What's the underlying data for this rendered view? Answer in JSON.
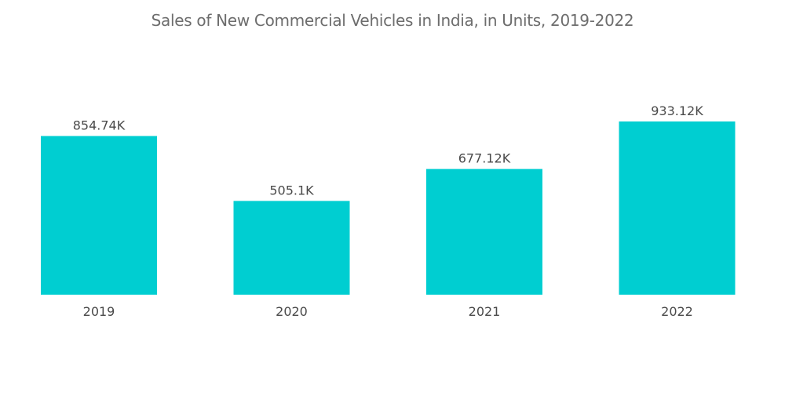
{
  "chart_data": {
    "type": "bar",
    "title": "Sales of New Commercial Vehicles in India, in Units, 2019-2022",
    "xlabel": "",
    "ylabel": "",
    "categories": [
      "2019",
      "2020",
      "2021",
      "2022"
    ],
    "values": [
      854.74,
      505.1,
      677.12,
      933.12
    ],
    "value_labels": [
      "854.74K",
      "505.1K",
      "677.12K",
      "933.12K"
    ],
    "unit": "K units",
    "ylim": [
      0,
      933.12
    ],
    "grid": false,
    "legend": "none",
    "bar_color": "#00ced1"
  }
}
